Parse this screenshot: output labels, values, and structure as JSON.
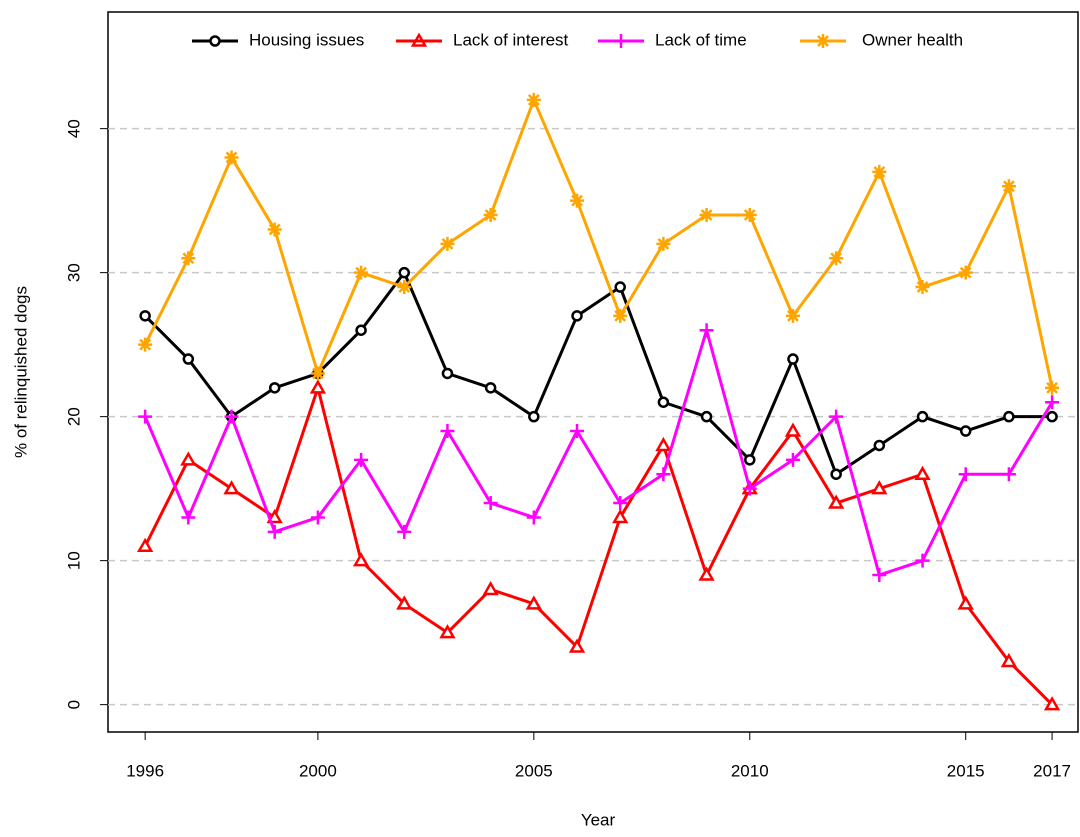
{
  "chart_data": {
    "type": "line",
    "x_label": "Year",
    "y_label": "% of relinquished dogs",
    "x": [
      1996,
      1997,
      1998,
      1999,
      2000,
      2001,
      2002,
      2003,
      2004,
      2005,
      2006,
      2007,
      2008,
      2009,
      2010,
      2011,
      2012,
      2013,
      2014,
      2015,
      2016,
      2017
    ],
    "series": [
      {
        "name": "Housing issues",
        "color": "#000000",
        "marker": "circle",
        "values": [
          27,
          24,
          20,
          22,
          23,
          26,
          30,
          23,
          22,
          20,
          27,
          29,
          21,
          20,
          17,
          24,
          16,
          18,
          20,
          19,
          20,
          20
        ]
      },
      {
        "name": "Lack of interest",
        "color": "#ff0000",
        "marker": "triangle",
        "values": [
          11,
          17,
          15,
          13,
          22,
          10,
          7,
          5,
          8,
          7,
          4,
          13,
          18,
          9,
          15,
          19,
          14,
          15,
          16,
          7,
          3,
          0
        ]
      },
      {
        "name": "Lack of time",
        "color": "#ff00ff",
        "marker": "plus",
        "values": [
          20,
          13,
          20,
          12,
          13,
          17,
          12,
          19,
          14,
          13,
          19,
          14,
          16,
          26,
          15,
          17,
          20,
          9,
          10,
          16,
          16,
          21
        ]
      },
      {
        "name": "Owner health",
        "color": "#ffa500",
        "marker": "star",
        "values": [
          25,
          31,
          38,
          33,
          23,
          30,
          29,
          32,
          34,
          42,
          35,
          27,
          32,
          34,
          34,
          27,
          31,
          37,
          29,
          30,
          36,
          22
        ]
      }
    ],
    "xlim": [
      1995.14,
      2017.6
    ],
    "ylim": [
      -1.9,
      48.1
    ],
    "xticks": [
      1996,
      2000,
      2005,
      2010,
      2015,
      2017
    ],
    "yticks": [
      0,
      10,
      20,
      30,
      40
    ],
    "grid": true,
    "legend": "top"
  }
}
